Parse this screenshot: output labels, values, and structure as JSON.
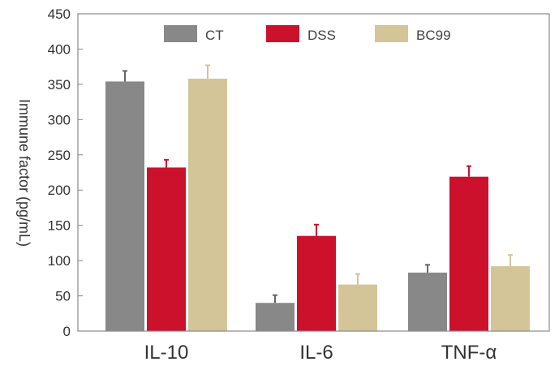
{
  "chart_data": {
    "type": "bar",
    "title": "",
    "xlabel": "",
    "ylabel": "Immune factor (pg/mL)",
    "ylim": [
      0,
      450
    ],
    "yticks": [
      0,
      50,
      100,
      150,
      200,
      250,
      300,
      350,
      400,
      450
    ],
    "categories": [
      "IL-10",
      "IL-6",
      "TNF-α"
    ],
    "legend_position": "top-center",
    "grid": false,
    "series": [
      {
        "name": "CT",
        "color": "#888888",
        "values": [
          354,
          40,
          83
        ],
        "errors": [
          15,
          11,
          11
        ]
      },
      {
        "name": "DSS",
        "color": "#cc112c",
        "values": [
          232,
          135,
          219
        ],
        "errors": [
          11,
          16,
          15
        ]
      },
      {
        "name": "BC99",
        "color": "#d3c598",
        "values": [
          358,
          66,
          92
        ],
        "errors": [
          19,
          15,
          16
        ]
      }
    ]
  }
}
